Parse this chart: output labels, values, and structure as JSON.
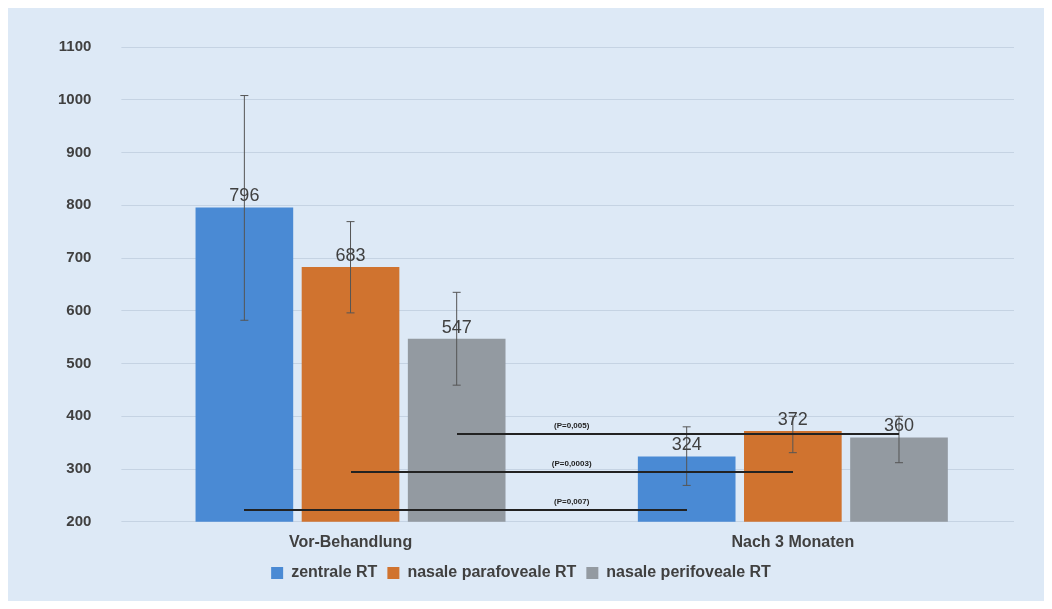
{
  "chart_data": {
    "type": "bar",
    "categories": [
      "Vor-Behandlung",
      "Nach 3 Monaten"
    ],
    "series": [
      {
        "name": "zentrale RT",
        "color": "#4a8ad4",
        "values": [
          796,
          324
        ],
        "errors": [
          [
            582,
            1008
          ],
          [
            269,
            380
          ]
        ]
      },
      {
        "name": "nasale parafoveale RT",
        "color": "#d0732f",
        "values": [
          683,
          372
        ],
        "errors": [
          [
            596,
            769
          ],
          [
            331,
            400
          ]
        ]
      },
      {
        "name": "nasale perifoveale RT",
        "color": "#939aa1",
        "values": [
          547,
          360
        ],
        "errors": [
          [
            459,
            635
          ],
          [
            312,
            400
          ]
        ]
      }
    ],
    "ylim": [
      200,
      1100
    ],
    "yticks": [
      200,
      300,
      400,
      500,
      600,
      700,
      800,
      900,
      1000,
      1100
    ],
    "grid": "y",
    "legend": "bottom",
    "data_labels": true,
    "annotations": [
      "(P=0,005)",
      "(P=0,0003)",
      "(P=0,007)"
    ]
  }
}
